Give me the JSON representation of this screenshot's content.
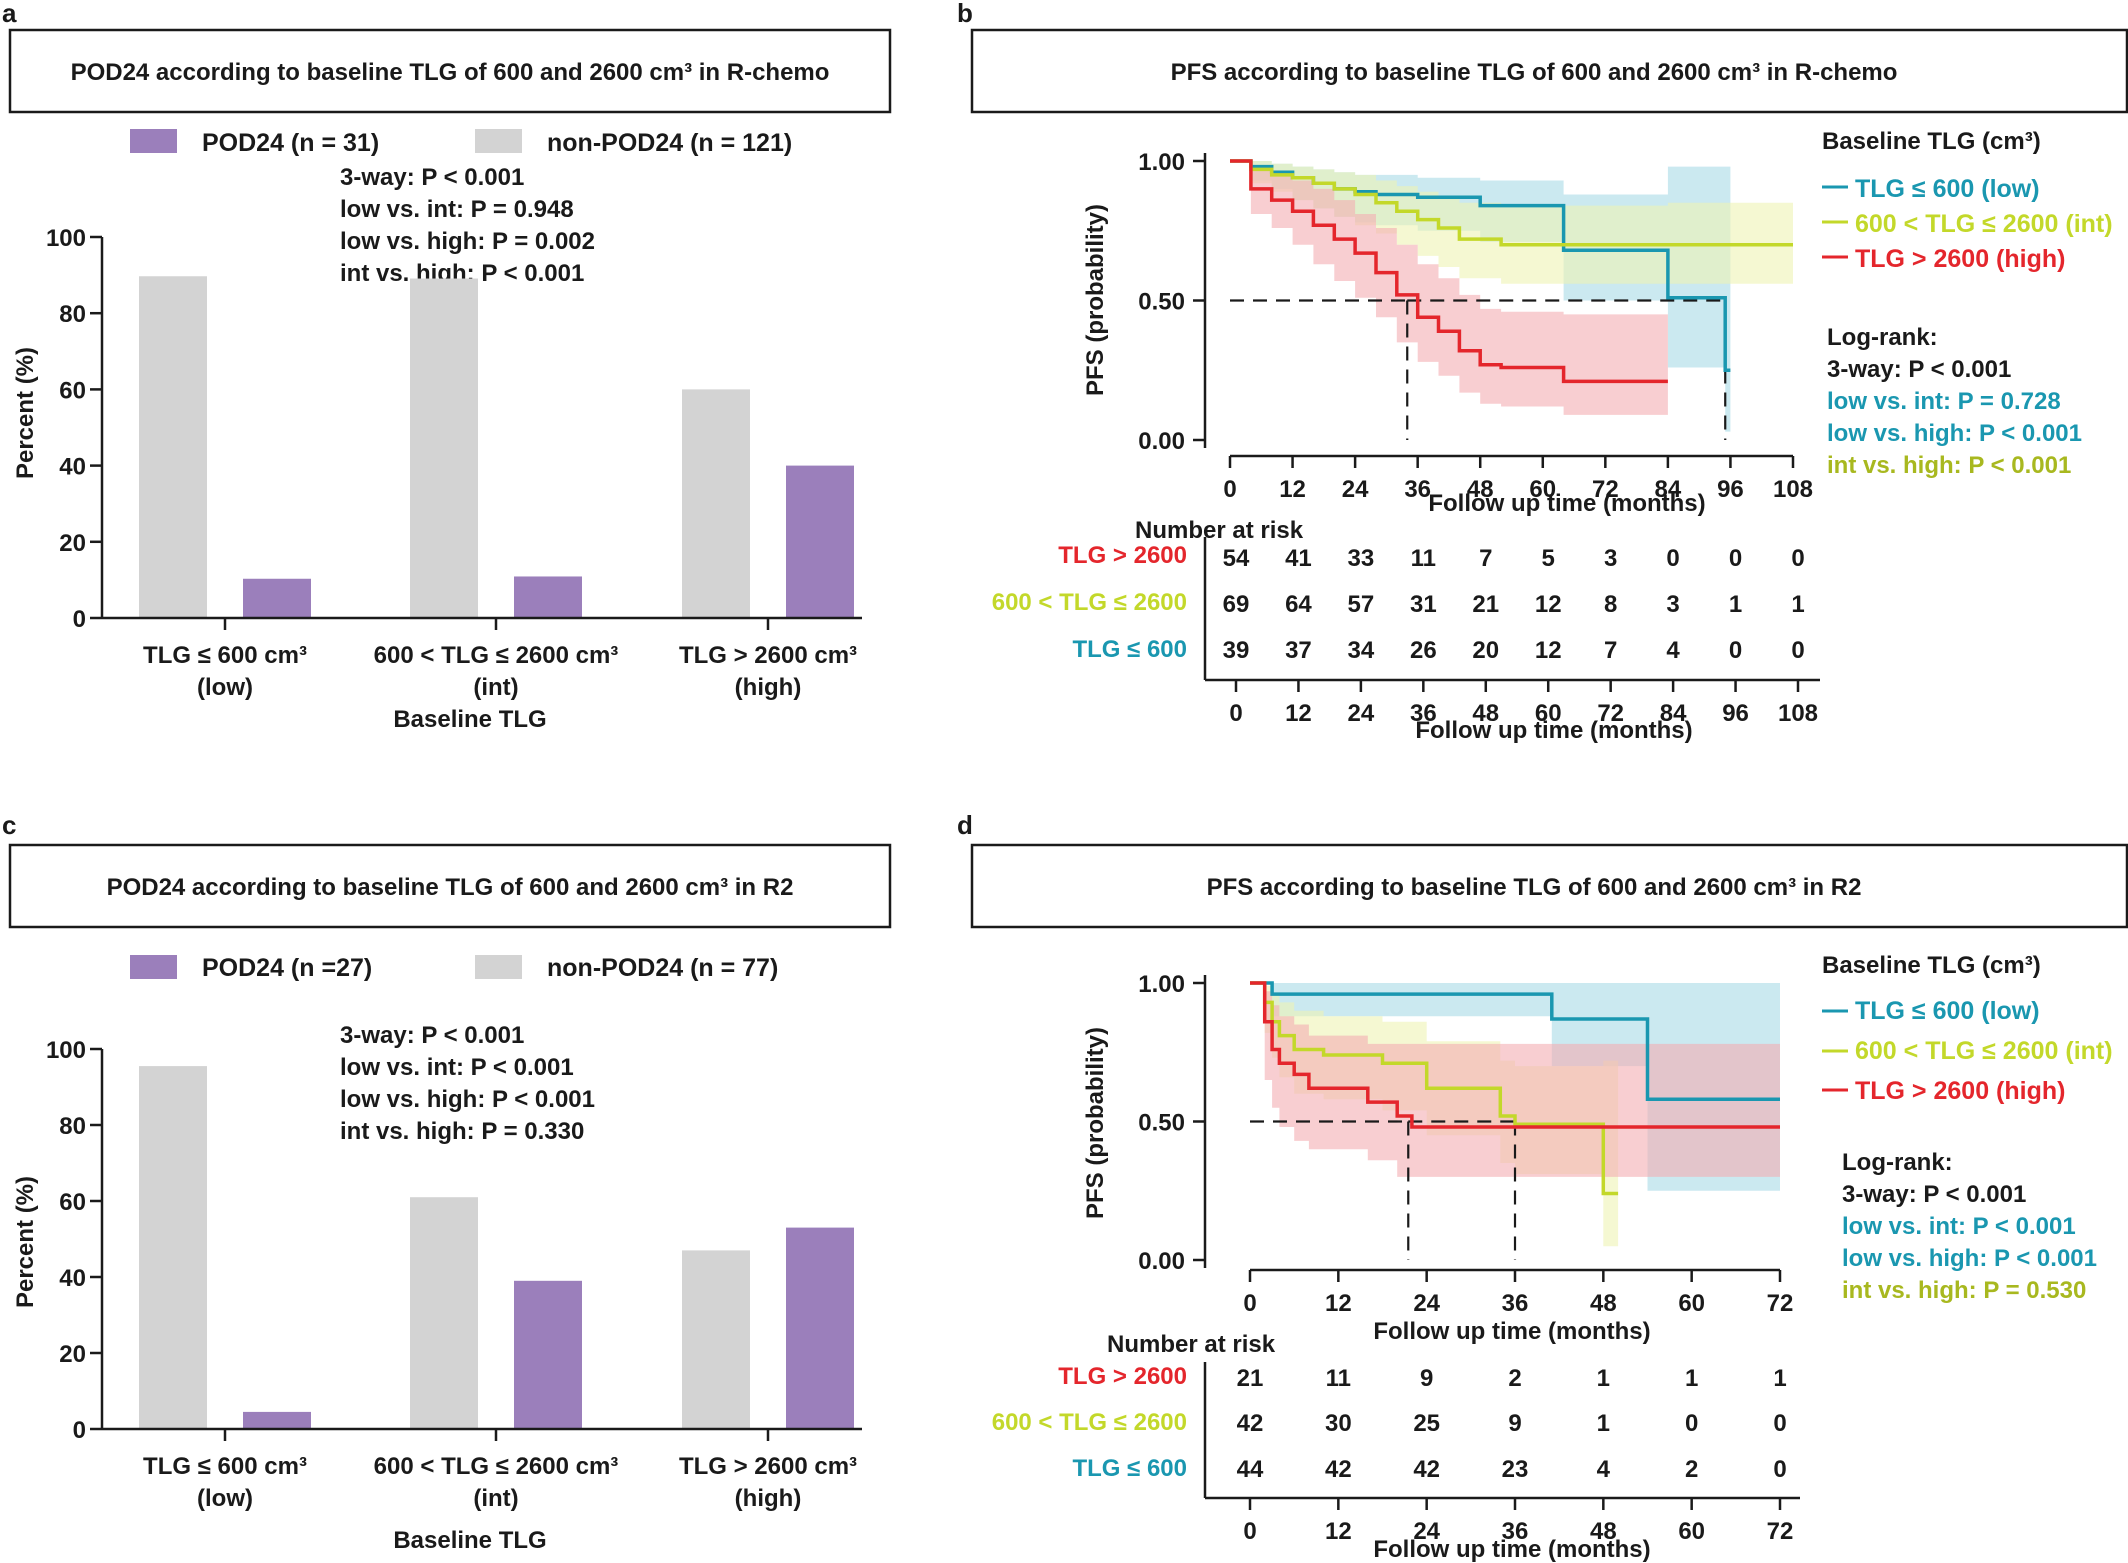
{
  "colors": {
    "pod24": "#9b7fbb",
    "non_pod24": "#d3d3d3",
    "low": "#1a97b0",
    "int": "#c3d82a",
    "high": "#e4262c",
    "low_band": "#a8dbe6",
    "int_band": "#eef3b4",
    "high_band": "#f4adb2",
    "text": "#1a1a1a"
  },
  "panels": {
    "a": {
      "letter": "a",
      "title": "POD24  according to baseline TLG of 600 and 2600 cm³ in R-chemo",
      "legend": [
        "POD24 (n = 31)",
        "non-POD24 (n = 121)"
      ],
      "stats": [
        "3-way: P < 0.001",
        "low vs. int: P = 0.948",
        "low vs. high: P = 0.002",
        "int vs. high: P < 0.001"
      ],
      "ylabel": "Percent (%)",
      "xlabel": "Baseline TLG",
      "group_labels": [
        [
          "TLG ≤ 600 cm³",
          "(low)"
        ],
        [
          "600 < TLG ≤ 2600 cm³",
          "(int)"
        ],
        [
          "TLG > 2600 cm³",
          "(high)"
        ]
      ]
    },
    "b": {
      "letter": "b",
      "title": "PFS according to baseline TLG of 600 and 2600 cm³ in R-chemo",
      "ylabel": "PFS (probability)",
      "xlabel": "Follow up time (months)",
      "legend_title": "Baseline TLG (cm³)",
      "legend": [
        "TLG ≤ 600 (low)",
        "600 < TLG ≤ 2600 (int)",
        "TLG > 2600 (high)"
      ],
      "logrank_title": "Log-rank:",
      "logrank": [
        "3-way: P < 0.001",
        "low vs. int: P = 0.728",
        "low vs. high: P < 0.001",
        "int vs. high: P < 0.001"
      ],
      "risk_title": "Number at risk",
      "risk_labels": [
        "TLG > 2600",
        "600 < TLG ≤ 2600",
        "TLG ≤ 600"
      ]
    },
    "c": {
      "letter": "c",
      "title": "POD24  according to baseline TLG of 600 and 2600 cm³ in R2",
      "legend": [
        "POD24 (n =27)",
        "non-POD24 (n = 77)"
      ],
      "stats": [
        "3-way: P < 0.001",
        "low vs. int: P < 0.001",
        "low vs. high: P < 0.001",
        "int vs. high: P = 0.330"
      ],
      "ylabel": "Percent (%)",
      "xlabel": "Baseline TLG",
      "group_labels": [
        [
          "TLG ≤ 600 cm³",
          "(low)"
        ],
        [
          "600 < TLG ≤ 2600 cm³",
          "(int)"
        ],
        [
          "TLG > 2600 cm³",
          "(high)"
        ]
      ]
    },
    "d": {
      "letter": "d",
      "title": "PFS according to baseline TLG of 600 and 2600 cm³ in R2",
      "ylabel": "PFS (probability)",
      "xlabel": "Follow up time (months)",
      "legend_title": "Baseline TLG (cm³)",
      "legend": [
        "TLG ≤ 600 (low)",
        "600 < TLG ≤ 2600 (int)",
        "TLG > 2600 (high)"
      ],
      "logrank_title": "Log-rank:",
      "logrank": [
        "3-way: P < 0.001",
        "low vs. int: P < 0.001",
        "low vs. high: P < 0.001",
        "int vs. high: P = 0.530"
      ],
      "risk_title": "Number at risk",
      "risk_labels": [
        "TLG > 2600",
        "600 < TLG ≤ 2600",
        "TLG ≤ 600"
      ]
    }
  },
  "chart_data": [
    {
      "panel": "a",
      "type": "bar",
      "categories": [
        "TLG ≤ 600 cm³ (low)",
        "600 < TLG ≤ 2600 cm³ (int)",
        "TLG > 2600 cm³ (high)"
      ],
      "series": [
        {
          "name": "non-POD24 (n = 121)",
          "values": [
            89.7,
            89.1,
            60.0
          ]
        },
        {
          "name": "POD24 (n = 31)",
          "values": [
            10.3,
            10.9,
            40.0
          ]
        }
      ],
      "xlabel": "Baseline TLG",
      "ylabel": "Percent (%)",
      "ylim": [
        0,
        100
      ],
      "yticks": [
        0,
        20,
        40,
        60,
        80,
        100
      ],
      "grid": false
    },
    {
      "panel": "b",
      "type": "line",
      "xlabel": "Follow up time (months)",
      "ylabel": "PFS (probability)",
      "xlim": [
        0,
        108
      ],
      "ylim": [
        0,
        1
      ],
      "xticks": [
        0,
        12,
        24,
        36,
        48,
        60,
        72,
        84,
        96,
        108
      ],
      "yticks": [
        "0.00",
        "0.50",
        "1.00"
      ],
      "median_lines": [
        {
          "x": 34,
          "y": 0.5
        },
        {
          "x": 95,
          "y": 0.5
        }
      ],
      "series": [
        {
          "name": "TLG ≤ 600 (low)",
          "key": "low",
          "x": [
            0,
            4,
            8,
            12,
            16,
            20,
            24,
            28,
            36,
            48,
            64,
            72,
            84,
            95,
            96
          ],
          "y": [
            1.0,
            0.98,
            0.96,
            0.94,
            0.92,
            0.9,
            0.89,
            0.88,
            0.87,
            0.84,
            0.68,
            0.68,
            0.51,
            0.25,
            0.25
          ],
          "upper": [
            1.0,
            1.0,
            0.99,
            0.98,
            0.97,
            0.96,
            0.95,
            0.95,
            0.94,
            0.93,
            0.88,
            0.88,
            0.98,
            0.98,
            0.98
          ],
          "lower": [
            1.0,
            0.93,
            0.9,
            0.86,
            0.83,
            0.8,
            0.78,
            0.77,
            0.75,
            0.71,
            0.5,
            0.5,
            0.26,
            0.03,
            0.03
          ]
        },
        {
          "name": "600 < TLG ≤ 2600 (int)",
          "key": "int",
          "x": [
            0,
            4,
            8,
            12,
            16,
            20,
            24,
            28,
            32,
            36,
            40,
            44,
            52,
            60,
            72,
            84,
            96,
            108
          ],
          "y": [
            1.0,
            0.97,
            0.95,
            0.94,
            0.92,
            0.9,
            0.88,
            0.85,
            0.82,
            0.79,
            0.76,
            0.72,
            0.7,
            0.7,
            0.7,
            0.7,
            0.7,
            0.7
          ],
          "upper": [
            1.0,
            1.0,
            0.99,
            0.98,
            0.97,
            0.96,
            0.95,
            0.93,
            0.91,
            0.89,
            0.87,
            0.85,
            0.84,
            0.84,
            0.84,
            0.85,
            0.85,
            0.85
          ],
          "lower": [
            1.0,
            0.92,
            0.89,
            0.86,
            0.83,
            0.8,
            0.77,
            0.74,
            0.7,
            0.66,
            0.62,
            0.58,
            0.56,
            0.56,
            0.56,
            0.56,
            0.56,
            0.56
          ]
        },
        {
          "name": "TLG > 2600 (high)",
          "key": "high",
          "x": [
            0,
            4,
            8,
            12,
            16,
            20,
            24,
            28,
            32,
            36,
            40,
            44,
            48,
            52,
            60,
            64,
            72,
            84
          ],
          "y": [
            1.0,
            0.9,
            0.86,
            0.82,
            0.77,
            0.72,
            0.67,
            0.6,
            0.52,
            0.44,
            0.39,
            0.32,
            0.27,
            0.26,
            0.26,
            0.21,
            0.21,
            0.21
          ],
          "upper": [
            1.0,
            0.97,
            0.95,
            0.93,
            0.9,
            0.86,
            0.81,
            0.76,
            0.7,
            0.63,
            0.58,
            0.52,
            0.47,
            0.46,
            0.46,
            0.45,
            0.45,
            0.45
          ],
          "lower": [
            1.0,
            0.81,
            0.76,
            0.7,
            0.63,
            0.57,
            0.51,
            0.44,
            0.35,
            0.28,
            0.23,
            0.17,
            0.13,
            0.12,
            0.12,
            0.09,
            0.09,
            0.09
          ]
        }
      ],
      "risk_table": {
        "times": [
          0,
          12,
          24,
          36,
          48,
          60,
          72,
          84,
          96,
          108
        ],
        "rows": [
          {
            "label": "TLG > 2600",
            "key": "high",
            "values": [
              54,
              41,
              33,
              11,
              7,
              5,
              3,
              0,
              0,
              0
            ]
          },
          {
            "label": "600 < TLG ≤ 2600",
            "key": "int",
            "values": [
              69,
              64,
              57,
              31,
              21,
              12,
              8,
              3,
              1,
              1
            ]
          },
          {
            "label": "TLG ≤ 600",
            "key": "low",
            "values": [
              39,
              37,
              34,
              26,
              20,
              12,
              7,
              4,
              0,
              0
            ]
          }
        ],
        "xlabel": "Follow up time (months)"
      }
    },
    {
      "panel": "c",
      "type": "bar",
      "categories": [
        "TLG ≤ 600 cm³ (low)",
        "600 < TLG ≤ 2600 cm³ (int)",
        "TLG > 2600 cm³ (high)"
      ],
      "series": [
        {
          "name": "non-POD24 (n = 77)",
          "values": [
            95.5,
            61.0,
            47.0
          ]
        },
        {
          "name": "POD24 (n =27)",
          "values": [
            4.5,
            39.0,
            53.0
          ]
        }
      ],
      "xlabel": "Baseline TLG",
      "ylabel": "Percent (%)",
      "ylim": [
        0,
        100
      ],
      "yticks": [
        0,
        20,
        40,
        60,
        80,
        100
      ],
      "grid": false
    },
    {
      "panel": "d",
      "type": "line",
      "xlabel": "Follow up time (months)",
      "ylabel": "PFS (probability)",
      "xlim": [
        0,
        72
      ],
      "ylim": [
        0,
        1
      ],
      "xticks": [
        0,
        12,
        24,
        36,
        48,
        60,
        72
      ],
      "yticks": [
        "0.00",
        "0.50",
        "1.00"
      ],
      "median_lines": [
        {
          "x": 21.5,
          "y": 0.5
        },
        {
          "x": 36,
          "y": 0.5
        }
      ],
      "series": [
        {
          "name": "TLG ≤ 600 (low)",
          "key": "low",
          "x": [
            0,
            3,
            12,
            24,
            36,
            41,
            44,
            48,
            54,
            60,
            72
          ],
          "y": [
            1.0,
            0.96,
            0.96,
            0.96,
            0.96,
            0.87,
            0.87,
            0.87,
            0.58,
            0.58,
            0.58
          ],
          "upper": [
            1.0,
            1.0,
            1.0,
            1.0,
            1.0,
            1.0,
            1.0,
            1.0,
            1.0,
            1.0,
            1.0
          ],
          "lower": [
            1.0,
            0.88,
            0.88,
            0.88,
            0.88,
            0.7,
            0.7,
            0.7,
            0.25,
            0.25,
            0.25
          ]
        },
        {
          "name": "600 < TLG ≤ 2600 (int)",
          "key": "int",
          "x": [
            0,
            2,
            3,
            4,
            6,
            10,
            12,
            18,
            24,
            30,
            34,
            36,
            40,
            48,
            50
          ],
          "y": [
            1.0,
            0.93,
            0.86,
            0.81,
            0.76,
            0.74,
            0.74,
            0.71,
            0.62,
            0.62,
            0.52,
            0.49,
            0.49,
            0.24,
            0.24
          ],
          "upper": [
            1.0,
            0.99,
            0.96,
            0.93,
            0.9,
            0.88,
            0.88,
            0.86,
            0.79,
            0.79,
            0.72,
            0.7,
            0.7,
            0.72,
            0.72
          ],
          "lower": [
            1.0,
            0.82,
            0.73,
            0.66,
            0.6,
            0.58,
            0.58,
            0.54,
            0.45,
            0.45,
            0.35,
            0.31,
            0.31,
            0.05,
            0.05
          ]
        },
        {
          "name": "TLG > 2600 (high)",
          "key": "high",
          "x": [
            0,
            2,
            3,
            4,
            6,
            8,
            12,
            16,
            20,
            22,
            36,
            48,
            60,
            72
          ],
          "y": [
            1.0,
            0.86,
            0.76,
            0.71,
            0.67,
            0.62,
            0.62,
            0.57,
            0.52,
            0.48,
            0.48,
            0.48,
            0.48,
            0.48
          ],
          "upper": [
            1.0,
            0.97,
            0.92,
            0.88,
            0.85,
            0.81,
            0.81,
            0.78,
            0.78,
            0.78,
            0.78,
            0.78,
            0.78,
            0.78
          ],
          "lower": [
            1.0,
            0.65,
            0.55,
            0.48,
            0.43,
            0.4,
            0.4,
            0.36,
            0.3,
            0.3,
            0.3,
            0.3,
            0.3,
            0.3
          ]
        }
      ],
      "risk_table": {
        "times": [
          0,
          12,
          24,
          36,
          48,
          60,
          72
        ],
        "rows": [
          {
            "label": "TLG > 2600",
            "key": "high",
            "values": [
              21,
              11,
              9,
              2,
              1,
              1,
              1
            ]
          },
          {
            "label": "600 < TLG ≤ 2600",
            "key": "int",
            "values": [
              42,
              30,
              25,
              9,
              1,
              0,
              0
            ]
          },
          {
            "label": "TLG ≤ 600",
            "key": "low",
            "values": [
              44,
              42,
              42,
              23,
              4,
              2,
              0
            ]
          }
        ],
        "xlabel": "Follow up time (months)"
      }
    }
  ]
}
